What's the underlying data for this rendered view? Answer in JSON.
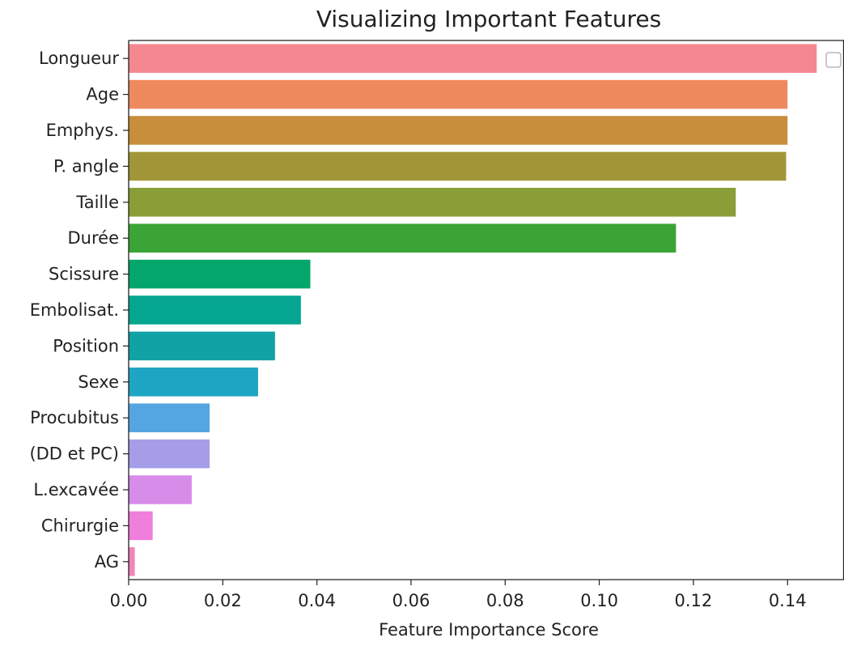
{
  "chart_data": {
    "type": "bar",
    "orientation": "horizontal",
    "title": "Visualizing Important Features",
    "xlabel": "Feature Importance Score",
    "ylabel": "",
    "xlim": [
      0,
      0.152
    ],
    "xticks": [
      0.0,
      0.02,
      0.04,
      0.06,
      0.08,
      0.1,
      0.12,
      0.14
    ],
    "xtick_labels": [
      "0.00",
      "0.02",
      "0.04",
      "0.06",
      "0.08",
      "0.10",
      "0.12",
      "0.14"
    ],
    "grid": false,
    "legend": {
      "placement": "top-right",
      "entries": []
    },
    "categories": [
      "Longueur",
      "Age",
      "Emphys.",
      "P. angle",
      "Taille",
      "Durée",
      "Scissure",
      "Embolisat.",
      "Position",
      "Sexe",
      "Procubitus",
      "(DD et PC)",
      "L.excavée",
      "Chirurgie",
      "AG"
    ],
    "values": [
      0.1462,
      0.14,
      0.14,
      0.1397,
      0.129,
      0.1163,
      0.0386,
      0.0366,
      0.0311,
      0.0275,
      0.0172,
      0.0172,
      0.0134,
      0.0051,
      0.0013
    ],
    "colors": [
      "#f4878f",
      "#ef8a5f",
      "#c88e3b",
      "#a19637",
      "#899e37",
      "#3aa536",
      "#04a66c",
      "#05a690",
      "#10a2a5",
      "#1ea5c3",
      "#53a6e0",
      "#a59de8",
      "#d68ce8",
      "#f07edc",
      "#f383b8"
    ]
  }
}
